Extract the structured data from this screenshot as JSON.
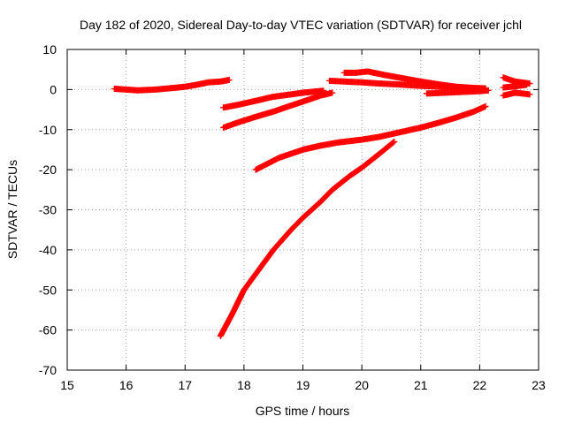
{
  "chart_data": {
    "type": "scatter",
    "title": "Day 182 of 2020, Sidereal Day-to-day VTEC variation (SDTVAR) for receiver jchl",
    "xlabel": "GPS time / hours",
    "ylabel": "SDTVAR / TECUs",
    "xlim": [
      15,
      23
    ],
    "ylim": [
      -70,
      10
    ],
    "xticks": [
      "15",
      "16",
      "17",
      "18",
      "19",
      "20",
      "21",
      "22",
      "23"
    ],
    "yticks": [
      "10",
      "0",
      "-10",
      "-20",
      "-30",
      "-40",
      "-50",
      "-60",
      "-70"
    ],
    "grid": true,
    "marker": "+",
    "color": "#ff0000",
    "series": [
      {
        "points": [
          [
            15.8,
            0.2
          ],
          [
            16.0,
            0.0
          ],
          [
            16.2,
            -0.2
          ],
          [
            16.5,
            0.0
          ],
          [
            16.8,
            0.4
          ],
          [
            17.0,
            0.7
          ],
          [
            17.2,
            1.2
          ],
          [
            17.4,
            1.8
          ],
          [
            17.6,
            2.0
          ],
          [
            17.75,
            2.4
          ]
        ]
      },
      {
        "points": [
          [
            17.65,
            -4.5
          ],
          [
            17.9,
            -3.8
          ],
          [
            18.2,
            -2.8
          ],
          [
            18.5,
            -1.8
          ],
          [
            18.8,
            -1.2
          ],
          [
            19.0,
            -0.8
          ],
          [
            19.2,
            -0.5
          ],
          [
            19.35,
            -0.3
          ]
        ]
      },
      {
        "points": [
          [
            17.65,
            -9.5
          ],
          [
            17.9,
            -8.2
          ],
          [
            18.2,
            -6.8
          ],
          [
            18.5,
            -5.5
          ],
          [
            18.8,
            -4.0
          ],
          [
            19.1,
            -2.5
          ],
          [
            19.3,
            -1.5
          ],
          [
            19.5,
            -0.8
          ]
        ]
      },
      {
        "points": [
          [
            19.45,
            2.2
          ],
          [
            19.7,
            2.0
          ],
          [
            20.0,
            1.8
          ],
          [
            20.3,
            1.5
          ],
          [
            20.6,
            1.3
          ],
          [
            20.9,
            1.0
          ],
          [
            21.2,
            0.8
          ],
          [
            21.5,
            0.6
          ],
          [
            21.8,
            0.4
          ],
          [
            22.1,
            0.2
          ]
        ]
      },
      {
        "points": [
          [
            19.7,
            4.2
          ],
          [
            19.9,
            4.2
          ],
          [
            20.1,
            4.5
          ],
          [
            20.4,
            3.6
          ],
          [
            20.7,
            2.8
          ],
          [
            21.0,
            2.0
          ],
          [
            21.3,
            1.3
          ],
          [
            21.6,
            0.7
          ],
          [
            21.9,
            0.4
          ],
          [
            22.1,
            0.3
          ]
        ]
      },
      {
        "points": [
          [
            21.1,
            -1.0
          ],
          [
            21.4,
            -0.8
          ],
          [
            21.7,
            -0.6
          ],
          [
            22.0,
            -0.4
          ],
          [
            22.15,
            -0.2
          ]
        ]
      },
      {
        "points": [
          [
            22.4,
            3.0
          ],
          [
            22.6,
            2.0
          ],
          [
            22.85,
            1.5
          ]
        ]
      },
      {
        "points": [
          [
            22.4,
            -1.5
          ],
          [
            22.6,
            -0.8
          ],
          [
            22.85,
            -1.2
          ]
        ]
      },
      {
        "points": [
          [
            22.4,
            0.5
          ],
          [
            22.6,
            0.8
          ],
          [
            22.8,
            1.2
          ]
        ]
      },
      {
        "points": [
          [
            18.2,
            -20.0
          ],
          [
            18.4,
            -18.5
          ],
          [
            18.6,
            -17.0
          ],
          [
            18.8,
            -16.0
          ],
          [
            19.0,
            -15.0
          ],
          [
            19.3,
            -14.0
          ],
          [
            19.6,
            -13.2
          ],
          [
            20.0,
            -12.5
          ],
          [
            20.3,
            -11.8
          ],
          [
            20.6,
            -10.8
          ],
          [
            21.0,
            -9.5
          ],
          [
            21.3,
            -8.3
          ],
          [
            21.6,
            -7.0
          ],
          [
            21.9,
            -5.5
          ],
          [
            22.1,
            -4.2
          ]
        ]
      },
      {
        "points": [
          [
            17.6,
            -61.5
          ],
          [
            17.8,
            -56.0
          ],
          [
            18.0,
            -50.0
          ],
          [
            18.2,
            -46.0
          ],
          [
            18.5,
            -40.0
          ],
          [
            18.8,
            -35.0
          ],
          [
            19.0,
            -32.0
          ],
          [
            19.3,
            -28.0
          ],
          [
            19.5,
            -25.0
          ],
          [
            19.8,
            -21.5
          ],
          [
            20.0,
            -19.5
          ],
          [
            20.3,
            -16.0
          ],
          [
            20.55,
            -13.0
          ]
        ]
      }
    ]
  }
}
